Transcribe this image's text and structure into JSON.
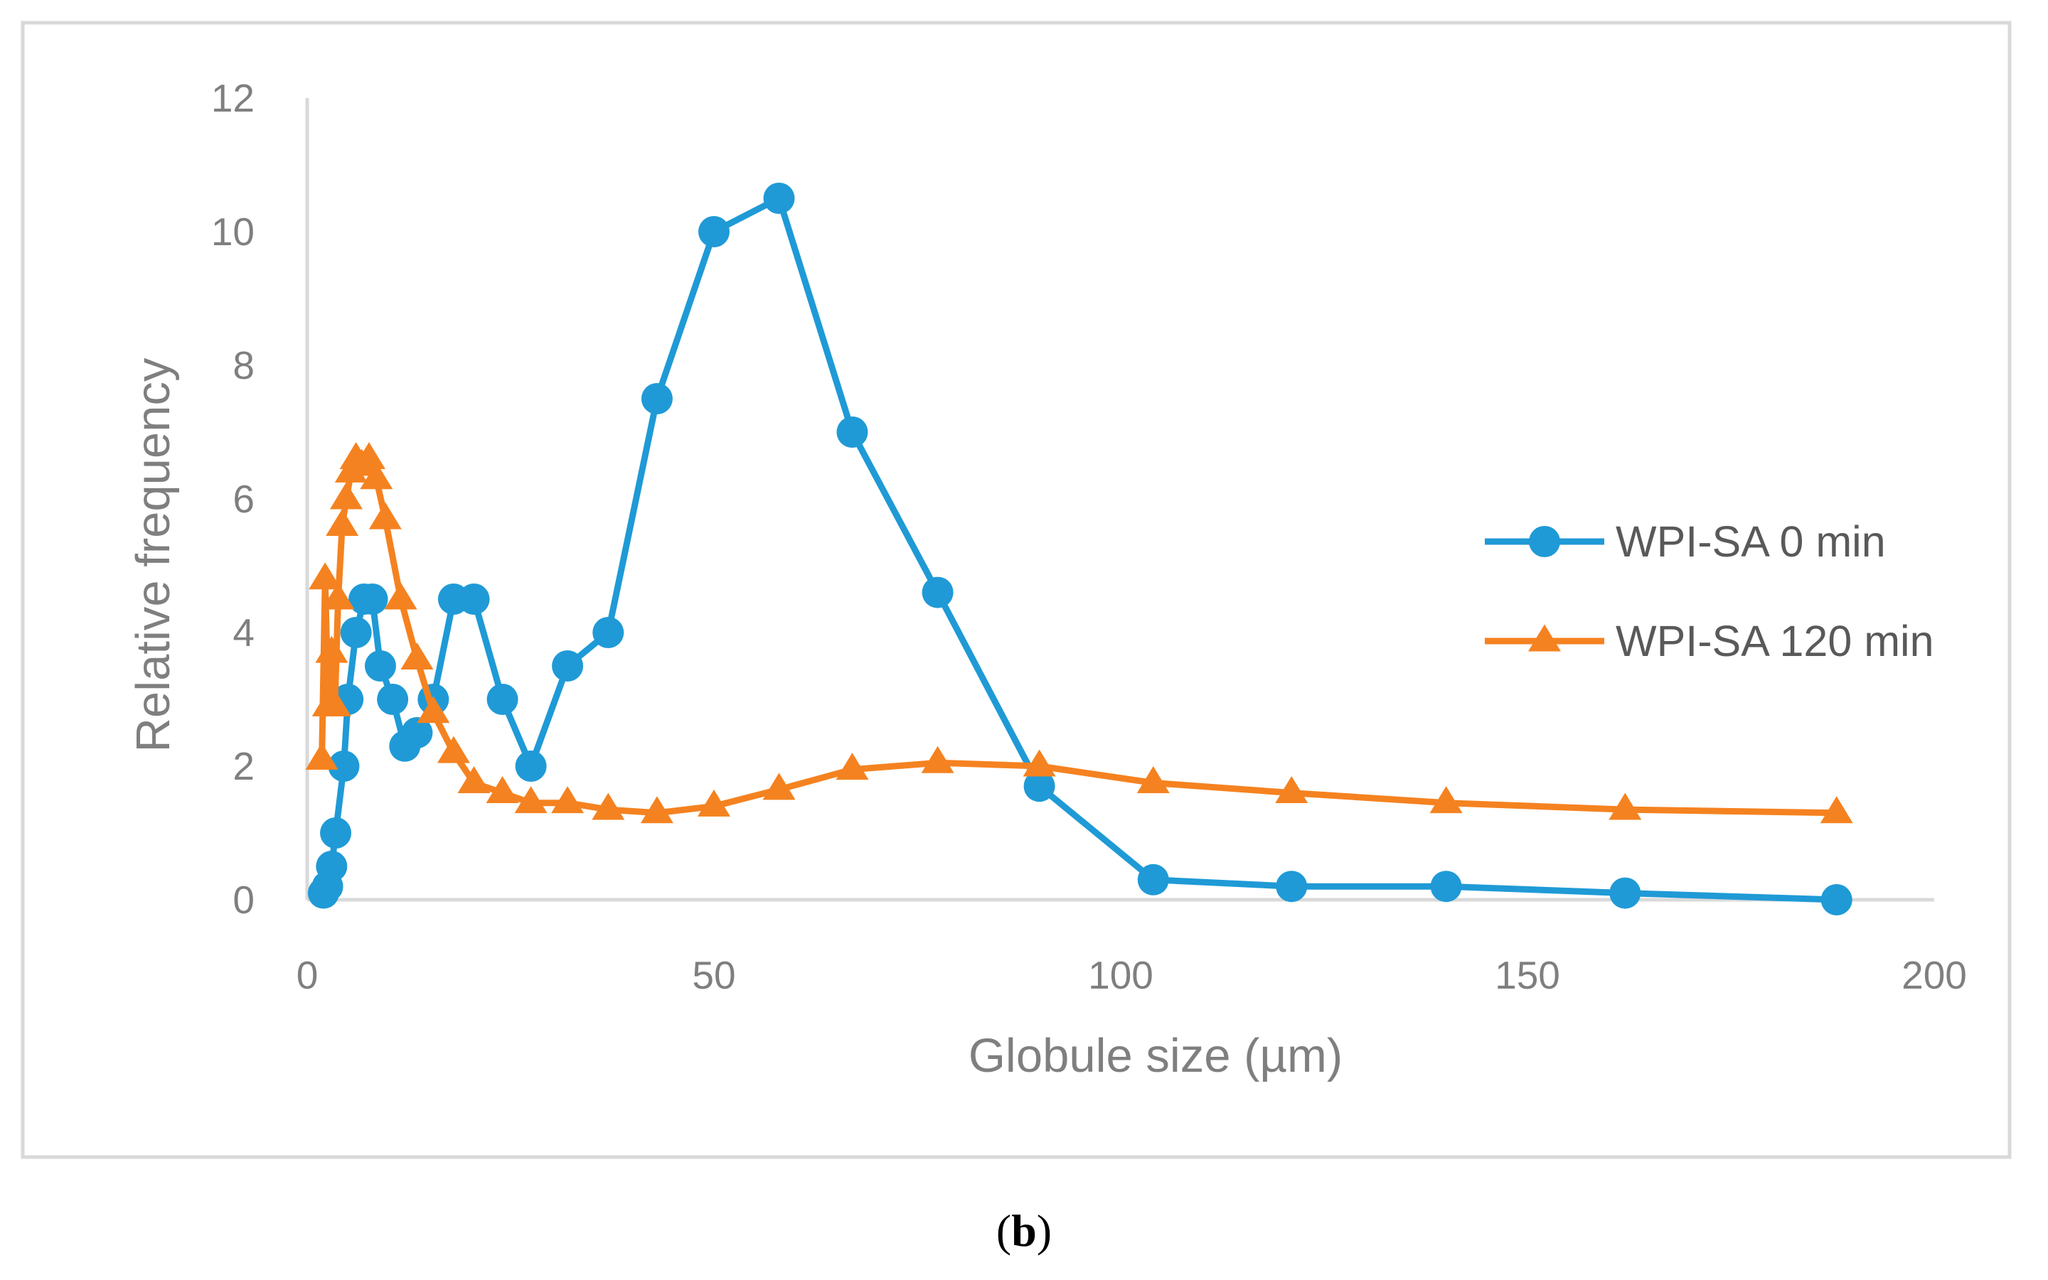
{
  "caption": {
    "open": "(",
    "letter": "b",
    "close": ")"
  },
  "chart_data": {
    "type": "line",
    "title": "",
    "xlabel": "Globule size (µm)",
    "ylabel": "Relative frequency",
    "xlim": [
      0,
      200
    ],
    "ylim": [
      0,
      12
    ],
    "xticks": [
      0,
      50,
      100,
      150,
      200
    ],
    "yticks": [
      0,
      2,
      4,
      6,
      8,
      10,
      12
    ],
    "grid": false,
    "legend_position": "right",
    "series": [
      {
        "name": "WPI-SA 0 min",
        "color": "#1f9ad6",
        "marker": "circle",
        "x": [
          2,
          2.5,
          3,
          3.5,
          4.5,
          5,
          6,
          7,
          8,
          9,
          10.5,
          12,
          13.5,
          15.5,
          18,
          20.5,
          24,
          27.5,
          32,
          37,
          43,
          50,
          58,
          67,
          77.5,
          90,
          104,
          121,
          140,
          162,
          188
        ],
        "y": [
          0.1,
          0.2,
          0.5,
          1,
          2,
          3,
          4,
          4.5,
          4.5,
          3.5,
          3,
          2.3,
          2.5,
          3,
          4.5,
          4.5,
          3,
          2,
          3.5,
          4,
          7.5,
          10,
          10.5,
          7,
          4.6,
          1.7,
          0.3,
          0.2,
          0.2,
          0.1,
          0
        ]
      },
      {
        "name": "WPI-SA 120 min",
        "color": "#f58220",
        "marker": "triangle",
        "x": [
          1.8,
          2.2,
          2.6,
          3,
          3.4,
          3.8,
          4.3,
          4.8,
          5.4,
          6,
          6.7,
          7.6,
          8.5,
          9.6,
          11.5,
          13.5,
          15.5,
          18,
          20.5,
          24,
          27.5,
          32,
          37,
          43,
          50,
          58,
          67,
          77.5,
          90,
          104,
          121,
          140,
          162,
          188
        ],
        "y": [
          2.1,
          4.8,
          2.9,
          3.7,
          2.9,
          4.5,
          5.6,
          6,
          6.4,
          6.6,
          6.5,
          6.6,
          6.3,
          5.7,
          4.5,
          3.6,
          2.8,
          2.2,
          1.75,
          1.6,
          1.45,
          1.45,
          1.35,
          1.3,
          1.4,
          1.65,
          1.95,
          2.05,
          2,
          1.75,
          1.6,
          1.45,
          1.35,
          1.3
        ]
      }
    ]
  }
}
